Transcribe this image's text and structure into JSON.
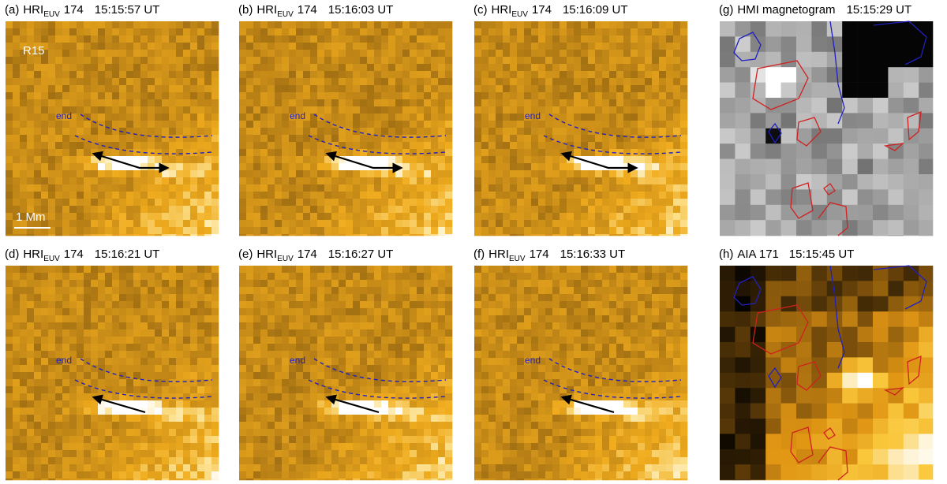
{
  "panels": [
    {
      "label": "(a)",
      "instrument": "HRI",
      "sub": "EUV",
      "channel": "174",
      "time": "15:15:57 UT"
    },
    {
      "label": "(b)",
      "instrument": "HRI",
      "sub": "EUV",
      "channel": "174",
      "time": "15:16:03 UT"
    },
    {
      "label": "(c)",
      "instrument": "HRI",
      "sub": "EUV",
      "channel": "174",
      "time": "15:16:09 UT"
    },
    {
      "label": "(g)",
      "instrument": "HMI magnetogram",
      "time": "15:15:29 UT"
    },
    {
      "label": "(d)",
      "instrument": "HRI",
      "sub": "EUV",
      "channel": "174",
      "time": "15:16:21 UT"
    },
    {
      "label": "(e)",
      "instrument": "HRI",
      "sub": "EUV",
      "channel": "174",
      "time": "15:16:27 UT"
    },
    {
      "label": "(f)",
      "instrument": "HRI",
      "sub": "EUV",
      "channel": "174",
      "time": "15:16:33 UT"
    },
    {
      "label": "(h)",
      "instrument": "AIA 171",
      "time": "15:15:45 UT"
    }
  ],
  "annotations": {
    "region": "R15",
    "end": "end",
    "scale": "1 Mm"
  }
}
